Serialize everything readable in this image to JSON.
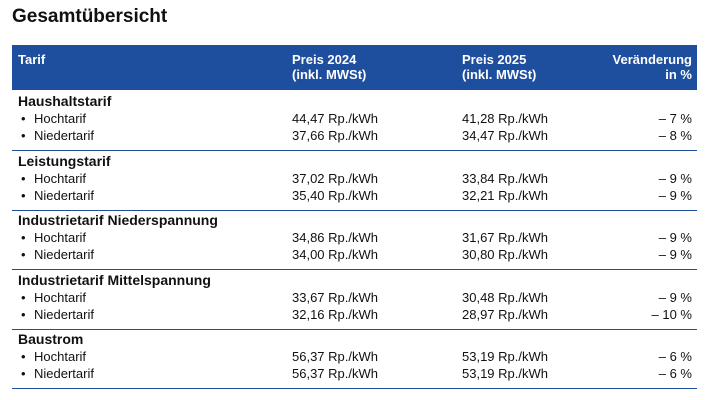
{
  "title": "Gesamtübersicht",
  "header": {
    "tariff": "Tarif",
    "price_2024": [
      "Preis 2024",
      "(inkl. MWSt)"
    ],
    "price_2025": [
      "Preis 2025",
      "(inkl. MWSt)"
    ],
    "change": [
      "Veränderung",
      "in %"
    ]
  },
  "groups": [
    {
      "name": "Haushaltstarif",
      "rows": [
        {
          "tariff": "Hochtarif",
          "price_2024": "44,47 Rp./kWh",
          "price_2025": "41,28 Rp./kWh",
          "change": "– 7 %"
        },
        {
          "tariff": "Niedertarif",
          "price_2024": "37,66 Rp./kWh",
          "price_2025": "34,47 Rp./kWh",
          "change": "– 8 %"
        }
      ]
    },
    {
      "name": "Leistungstarif",
      "rows": [
        {
          "tariff": "Hochtarif",
          "price_2024": "37,02 Rp./kWh",
          "price_2025": "33,84 Rp./kWh",
          "change": "– 9 %"
        },
        {
          "tariff": "Niedertarif",
          "price_2024": "35,40 Rp./kWh",
          "price_2025": "32,21 Rp./kWh",
          "change": "– 9 %"
        }
      ]
    },
    {
      "name": "Industrietarif Niederspannung",
      "rows": [
        {
          "tariff": "Hochtarif",
          "price_2024": "34,86 Rp./kWh",
          "price_2025": "31,67 Rp./kWh",
          "change": "– 9 %"
        },
        {
          "tariff": "Niedertarif",
          "price_2024": "34,00 Rp./kWh",
          "price_2025": "30,80 Rp./kWh",
          "change": "– 9 %"
        }
      ]
    },
    {
      "name": "Industrietarif Mittelspannung",
      "rows": [
        {
          "tariff": "Hochtarif",
          "price_2024": "33,67 Rp./kWh",
          "price_2025": "30,48 Rp./kWh",
          "change": "– 9 %"
        },
        {
          "tariff": "Niedertarif",
          "price_2024": "32,16 Rp./kWh",
          "price_2025": "28,97 Rp./kWh",
          "change": "– 10 %"
        }
      ]
    },
    {
      "name": "Baustrom",
      "rows": [
        {
          "tariff": "Hochtarif",
          "price_2024": "56,37 Rp./kWh",
          "price_2025": "53,19 Rp./kWh",
          "change": "– 6 %"
        },
        {
          "tariff": "Niedertarif",
          "price_2024": "56,37 Rp./kWh",
          "price_2025": "53,19 Rp./kWh",
          "change": "– 6 %"
        }
      ]
    }
  ]
}
